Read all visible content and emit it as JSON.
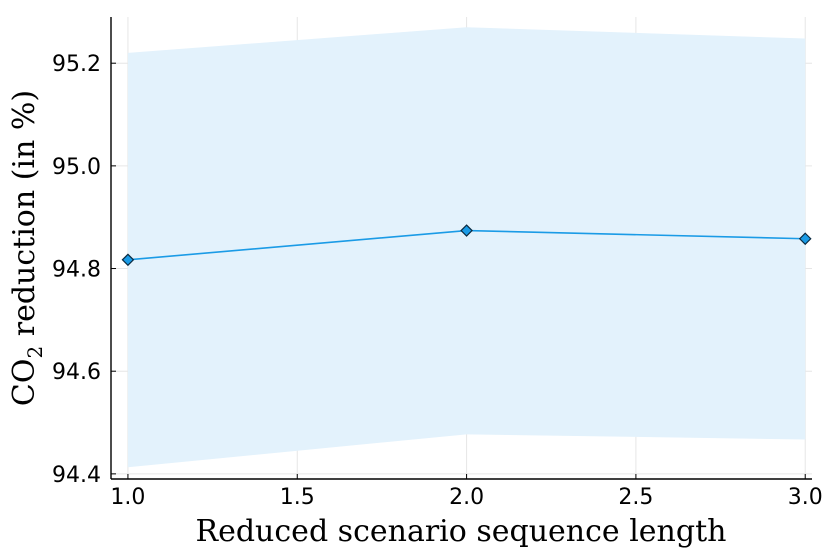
{
  "chart_data": {
    "type": "line",
    "xlabel": "Reduced scenario sequence length",
    "ylabel_main": "CO",
    "ylabel_sub": "2",
    "ylabel_rest": " reduction (in %)",
    "xlim": [
      0.95,
      3.02
    ],
    "ylim": [
      94.39,
      95.29
    ],
    "x_ticks": [
      1.0,
      1.5,
      2.0,
      2.5,
      3.0
    ],
    "x_tick_labels": [
      "1.0",
      "1.5",
      "2.0",
      "2.5",
      "3.0"
    ],
    "y_ticks": [
      94.4,
      94.6,
      94.8,
      95.0,
      95.2
    ],
    "y_tick_labels": [
      "94.4",
      "94.6",
      "94.8",
      "95.0",
      "95.2"
    ],
    "grid": true,
    "series": [
      {
        "x": [
          1.0,
          2.0,
          3.0
        ],
        "values": [
          94.817,
          94.874,
          94.858
        ],
        "band_lower": [
          94.413,
          94.477,
          94.467
        ],
        "band_upper": [
          95.22,
          95.27,
          95.248
        ],
        "marker": "diamond"
      }
    ],
    "colors": {
      "line": "#1a9be6",
      "marker_fill": "#1a9be6",
      "marker_edge": "#0a2a40",
      "band": "#e3f2fc",
      "grid": "#e6e6e6",
      "axis": "#000000"
    }
  }
}
